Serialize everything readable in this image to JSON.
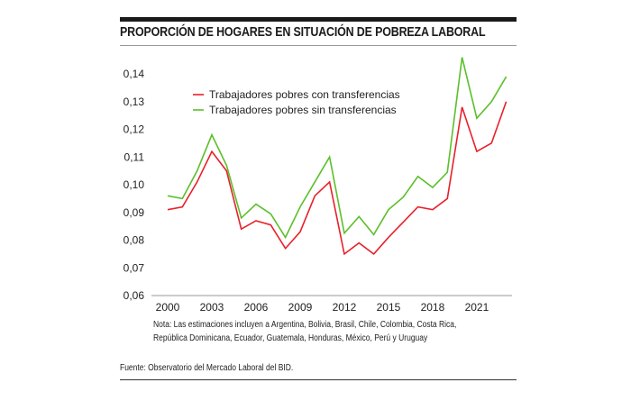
{
  "chart_data": {
    "type": "line",
    "title": "PROPORCIÓN DE HOGARES EN SITUACIÓN DE POBREZA LABORAL",
    "x": [
      2000,
      2001,
      2002,
      2003,
      2004,
      2005,
      2006,
      2007,
      2008,
      2009,
      2010,
      2011,
      2012,
      2013,
      2014,
      2015,
      2016,
      2017,
      2018,
      2019,
      2020,
      2021,
      2022,
      2023
    ],
    "xticks": [
      "2000",
      "2003",
      "2006",
      "2009",
      "2012",
      "2015",
      "2018",
      "2021"
    ],
    "yticks": [
      "0,06",
      "0,07",
      "0,08",
      "0,09",
      "0,10",
      "0,11",
      "0,12",
      "0,13",
      "0,14"
    ],
    "ylim": [
      0.06,
      0.14
    ],
    "legend_placement": "top-left",
    "series": [
      {
        "name": "Trabajadores pobres con transferencias",
        "color": "#e8202a",
        "values": [
          0.091,
          0.092,
          0.101,
          0.112,
          0.105,
          0.084,
          0.087,
          0.0855,
          0.077,
          0.083,
          0.096,
          0.101,
          0.075,
          0.079,
          0.075,
          0.081,
          0.0865,
          0.092,
          0.091,
          0.095,
          0.128,
          0.112,
          0.115,
          0.13
        ]
      },
      {
        "name": "Trabajadores pobres sin transferencias",
        "color": "#5cbf2a",
        "values": [
          0.096,
          0.095,
          0.105,
          0.118,
          0.107,
          0.088,
          0.093,
          0.0895,
          0.081,
          0.092,
          0.101,
          0.11,
          0.0825,
          0.0885,
          0.082,
          0.091,
          0.0955,
          0.103,
          0.099,
          0.1045,
          0.146,
          0.124,
          0.13,
          0.139
        ]
      }
    ]
  },
  "note_line1": "Nota: Las estimaciones incluyen a Argentina, Bolivia, Brasil, Chile, Colombia, Costa Rica,",
  "note_line2": "República Dominicana, Ecuador, Guatemala, Honduras, México, Perú y Uruguay",
  "source": "Fuente: Observatorio del Mercado Laboral del BID."
}
